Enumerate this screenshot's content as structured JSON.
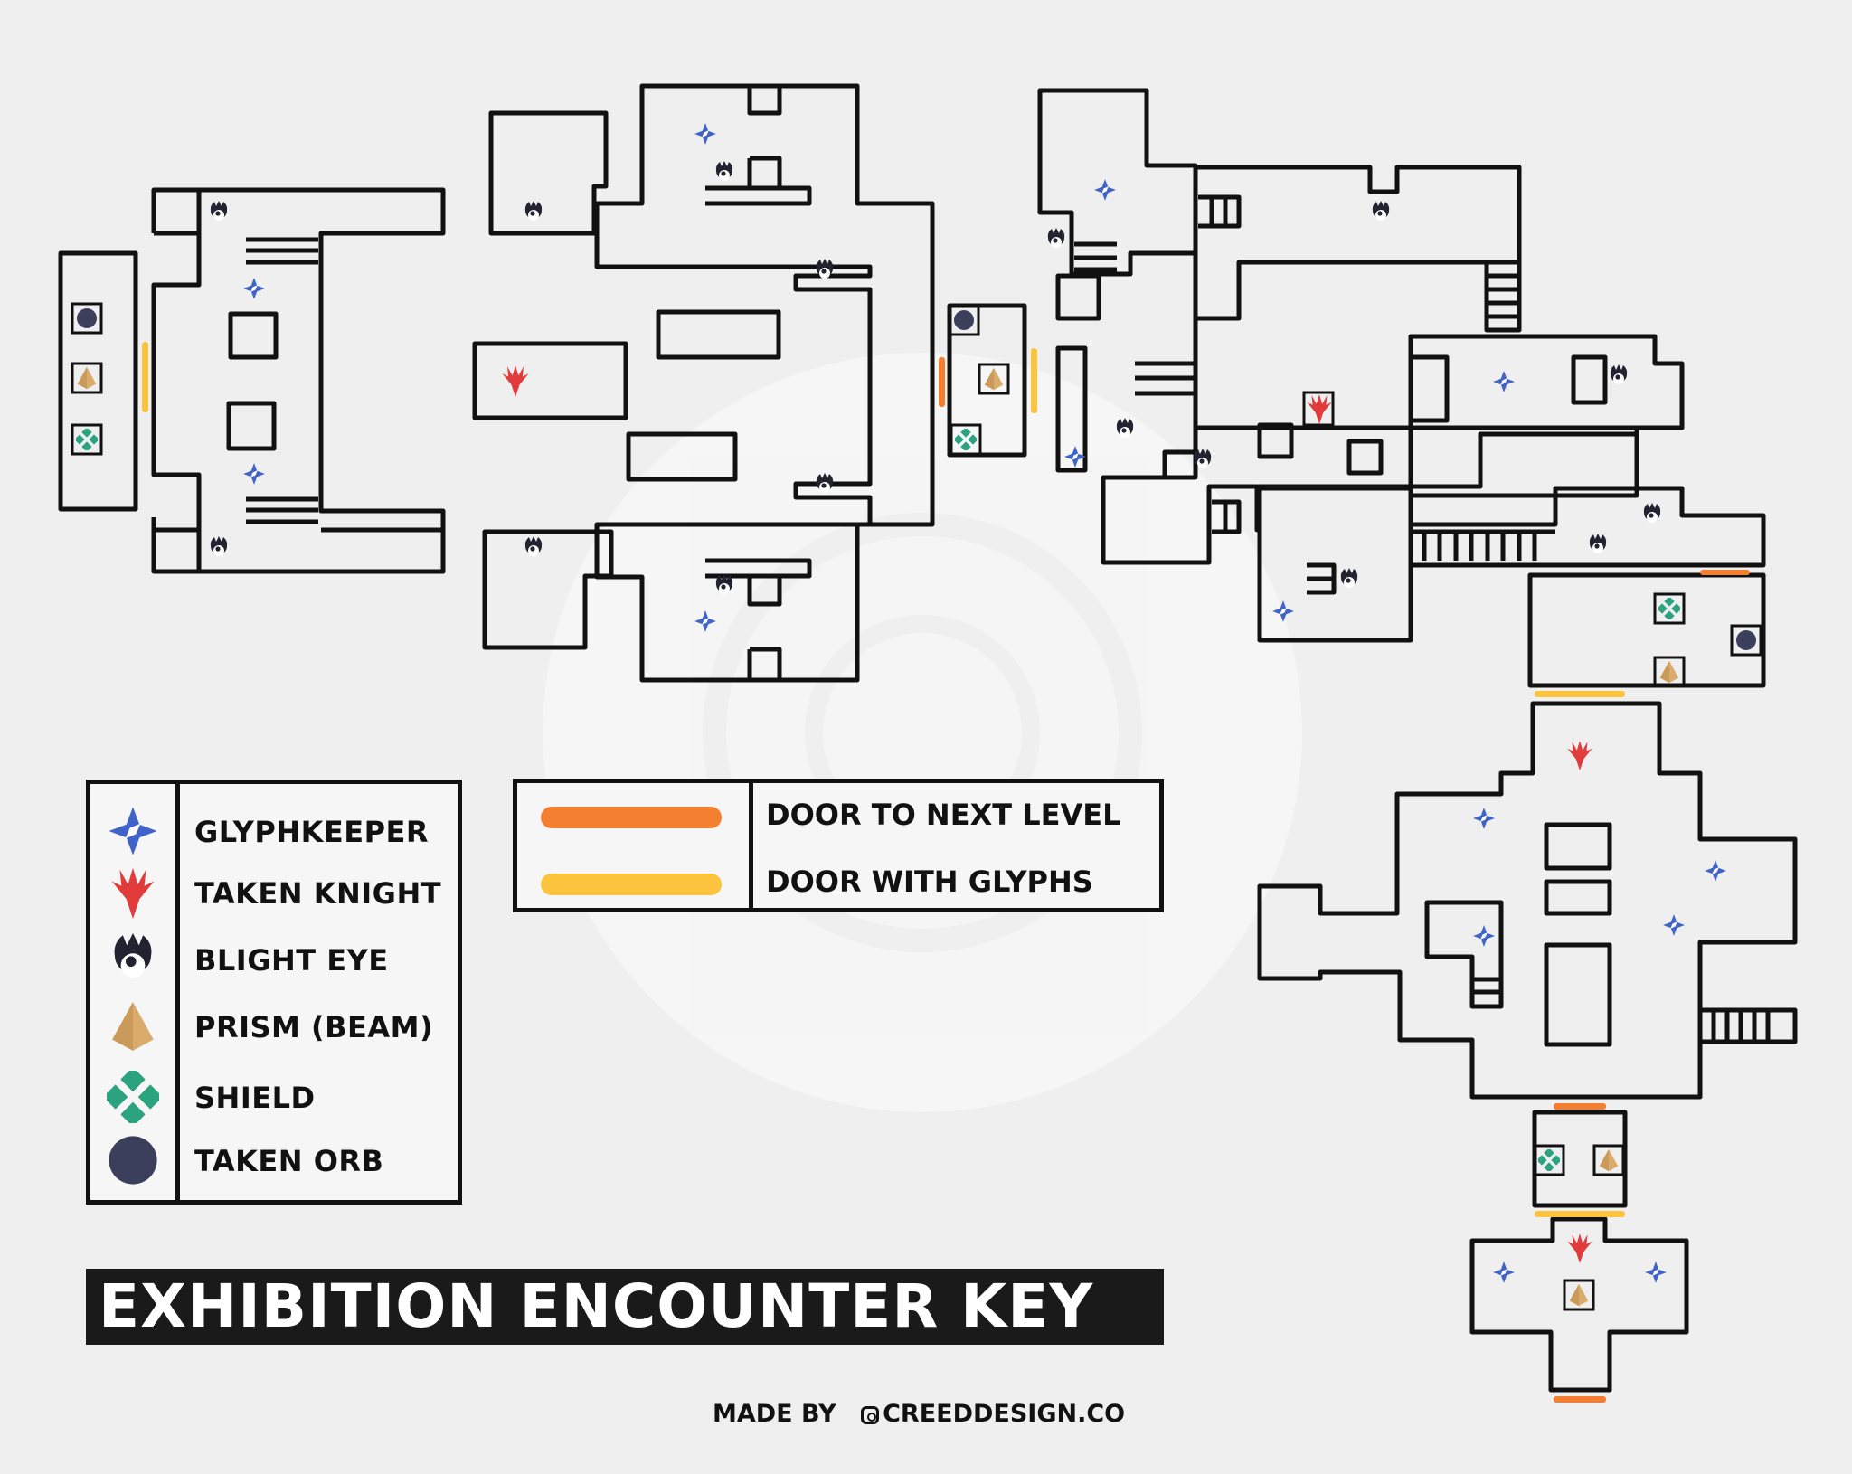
{
  "legend": {
    "markers": [
      {
        "label": "GLYPHKEEPER",
        "icon": "glyphkeeper-icon"
      },
      {
        "label": "TAKEN KNIGHT",
        "icon": "taken-knight-icon"
      },
      {
        "label": "BLIGHT EYE",
        "icon": "blight-eye-icon"
      },
      {
        "label": "PRISM (BEAM)",
        "icon": "prism-icon"
      },
      {
        "label": "SHIELD",
        "icon": "shield-icon"
      },
      {
        "label": "TAKEN ORB",
        "icon": "taken-orb-icon"
      }
    ],
    "doors": [
      {
        "label": "DOOR TO NEXT LEVEL",
        "color": "#f47f31"
      },
      {
        "label": "DOOR WITH GLYPHS",
        "color": "#fbc43c"
      }
    ]
  },
  "title": "EXHIBITION ENCOUNTER KEY",
  "credit": {
    "prefix": "MADE BY",
    "handle": "CREEDDESIGN.CO"
  },
  "colors": {
    "glyphkeeper": "#3f63c9",
    "taken_knight": "#e23b3b",
    "blight_eye": "#222230",
    "prism": "#d9ac6b",
    "shield": "#2aa37e",
    "taken_orb": "#3b3f5c",
    "door_next": "#f47f31",
    "door_glyphs": "#fbc43c"
  }
}
